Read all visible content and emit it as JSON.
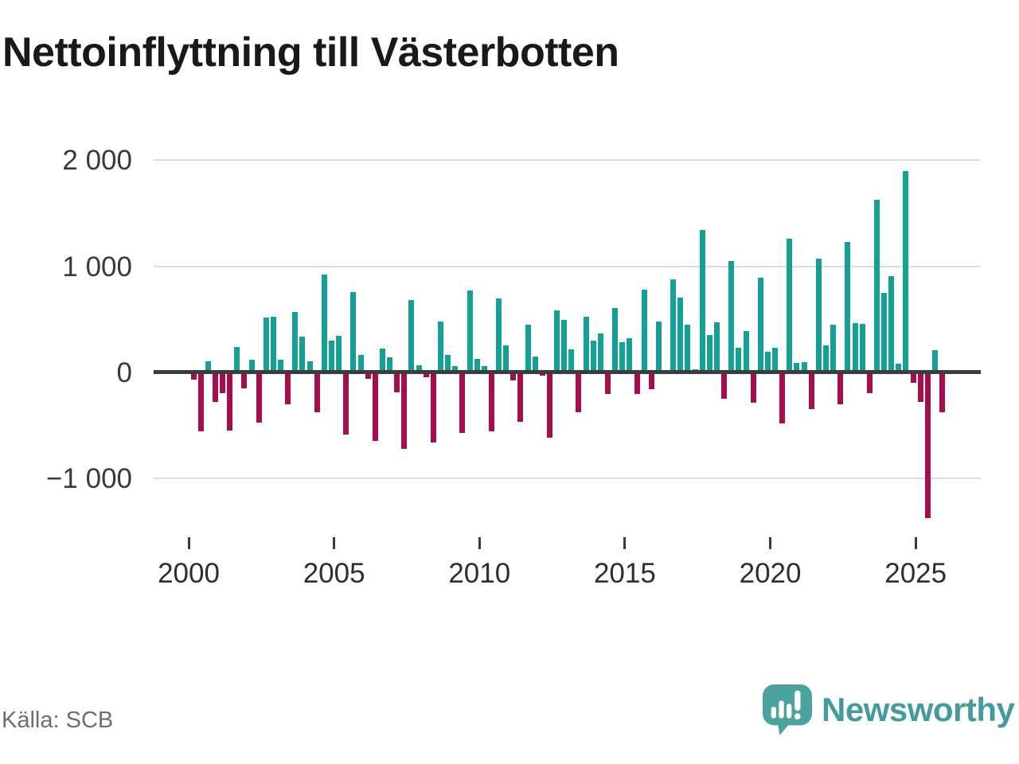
{
  "title": "Nettoinflyttning till Västerbotten",
  "source": "Källa: SCB",
  "logo": {
    "text": "Newsworthy",
    "icon": "newsworthy-bubble-chart-icon"
  },
  "colors": {
    "positive": "#14a095",
    "negative": "#a50d4d",
    "zero_line": "#3d3d3d",
    "gridline": "#dcdcdc",
    "logo_teal": "#4ca39d"
  },
  "chart_data": {
    "type": "bar",
    "title": "Nettoinflyttning till Västerbotten",
    "xlabel": "",
    "ylabel": "",
    "ylim": [
      -1500,
      2000
    ],
    "grid": true,
    "legend": false,
    "unit": "persons per quarter (net migration)",
    "x": [
      "2000Q1",
      "2000Q2",
      "2000Q3",
      "2000Q4",
      "2001Q1",
      "2001Q2",
      "2001Q3",
      "2001Q4",
      "2002Q1",
      "2002Q2",
      "2002Q3",
      "2002Q4",
      "2003Q1",
      "2003Q2",
      "2003Q3",
      "2003Q4",
      "2004Q1",
      "2004Q2",
      "2004Q3",
      "2004Q4",
      "2005Q1",
      "2005Q2",
      "2005Q3",
      "2005Q4",
      "2006Q1",
      "2006Q2",
      "2006Q3",
      "2006Q4",
      "2007Q1",
      "2007Q2",
      "2007Q3",
      "2007Q4",
      "2008Q1",
      "2008Q2",
      "2008Q3",
      "2008Q4",
      "2009Q1",
      "2009Q2",
      "2009Q3",
      "2009Q4",
      "2010Q1",
      "2010Q2",
      "2010Q3",
      "2010Q4",
      "2011Q1",
      "2011Q2",
      "2011Q3",
      "2011Q4",
      "2012Q1",
      "2012Q2",
      "2012Q3",
      "2012Q4",
      "2013Q1",
      "2013Q2",
      "2013Q3",
      "2013Q4",
      "2014Q1",
      "2014Q2",
      "2014Q3",
      "2014Q4",
      "2015Q1",
      "2015Q2",
      "2015Q3",
      "2015Q4",
      "2016Q1",
      "2016Q2",
      "2016Q3",
      "2016Q4",
      "2017Q1",
      "2017Q2",
      "2017Q3",
      "2017Q4",
      "2018Q1",
      "2018Q2",
      "2018Q3",
      "2018Q4",
      "2019Q1",
      "2019Q2",
      "2019Q3",
      "2019Q4",
      "2020Q1",
      "2020Q2",
      "2020Q3",
      "2020Q4",
      "2021Q1",
      "2021Q2",
      "2021Q3",
      "2021Q4",
      "2022Q1",
      "2022Q2",
      "2022Q3",
      "2022Q4",
      "2023Q1",
      "2023Q2",
      "2023Q3",
      "2023Q4",
      "2024Q1",
      "2024Q2",
      "2024Q3",
      "2024Q4",
      "2025Q1",
      "2025Q2",
      "2025Q3",
      "2025Q4"
    ],
    "values": [
      -70,
      -555,
      100,
      -280,
      -195,
      -550,
      240,
      -155,
      120,
      -475,
      515,
      525,
      120,
      -305,
      570,
      335,
      105,
      -380,
      920,
      295,
      340,
      -585,
      760,
      160,
      -65,
      -650,
      225,
      140,
      -190,
      -720,
      680,
      65,
      -45,
      -660,
      475,
      160,
      60,
      -575,
      775,
      125,
      55,
      -555,
      695,
      250,
      -80,
      -470,
      445,
      145,
      -35,
      -615,
      580,
      495,
      215,
      -375,
      525,
      300,
      365,
      -205,
      605,
      280,
      320,
      -205,
      780,
      -160,
      475,
      0,
      880,
      700,
      445,
      30,
      1345,
      350,
      470,
      -250,
      1050,
      230,
      390,
      -285,
      890,
      190,
      230,
      -485,
      1260,
      85,
      95,
      -350,
      1070,
      250,
      450,
      -300,
      1230,
      465,
      455,
      -200,
      1630,
      750,
      910,
      80,
      1900,
      -100,
      -280,
      -1375,
      210,
      -380
    ],
    "y_ticks": [
      {
        "label": "2 000",
        "value": 2000
      },
      {
        "label": "1 000",
        "value": 1000
      },
      {
        "label": "0",
        "value": 0
      },
      {
        "label": "−1 000",
        "value": -1000
      }
    ],
    "x_ticks": [
      {
        "label": "2000",
        "year": 2000
      },
      {
        "label": "2005",
        "year": 2005
      },
      {
        "label": "2010",
        "year": 2010
      },
      {
        "label": "2015",
        "year": 2015
      },
      {
        "label": "2020",
        "year": 2020
      },
      {
        "label": "2025",
        "year": 2025
      }
    ]
  }
}
